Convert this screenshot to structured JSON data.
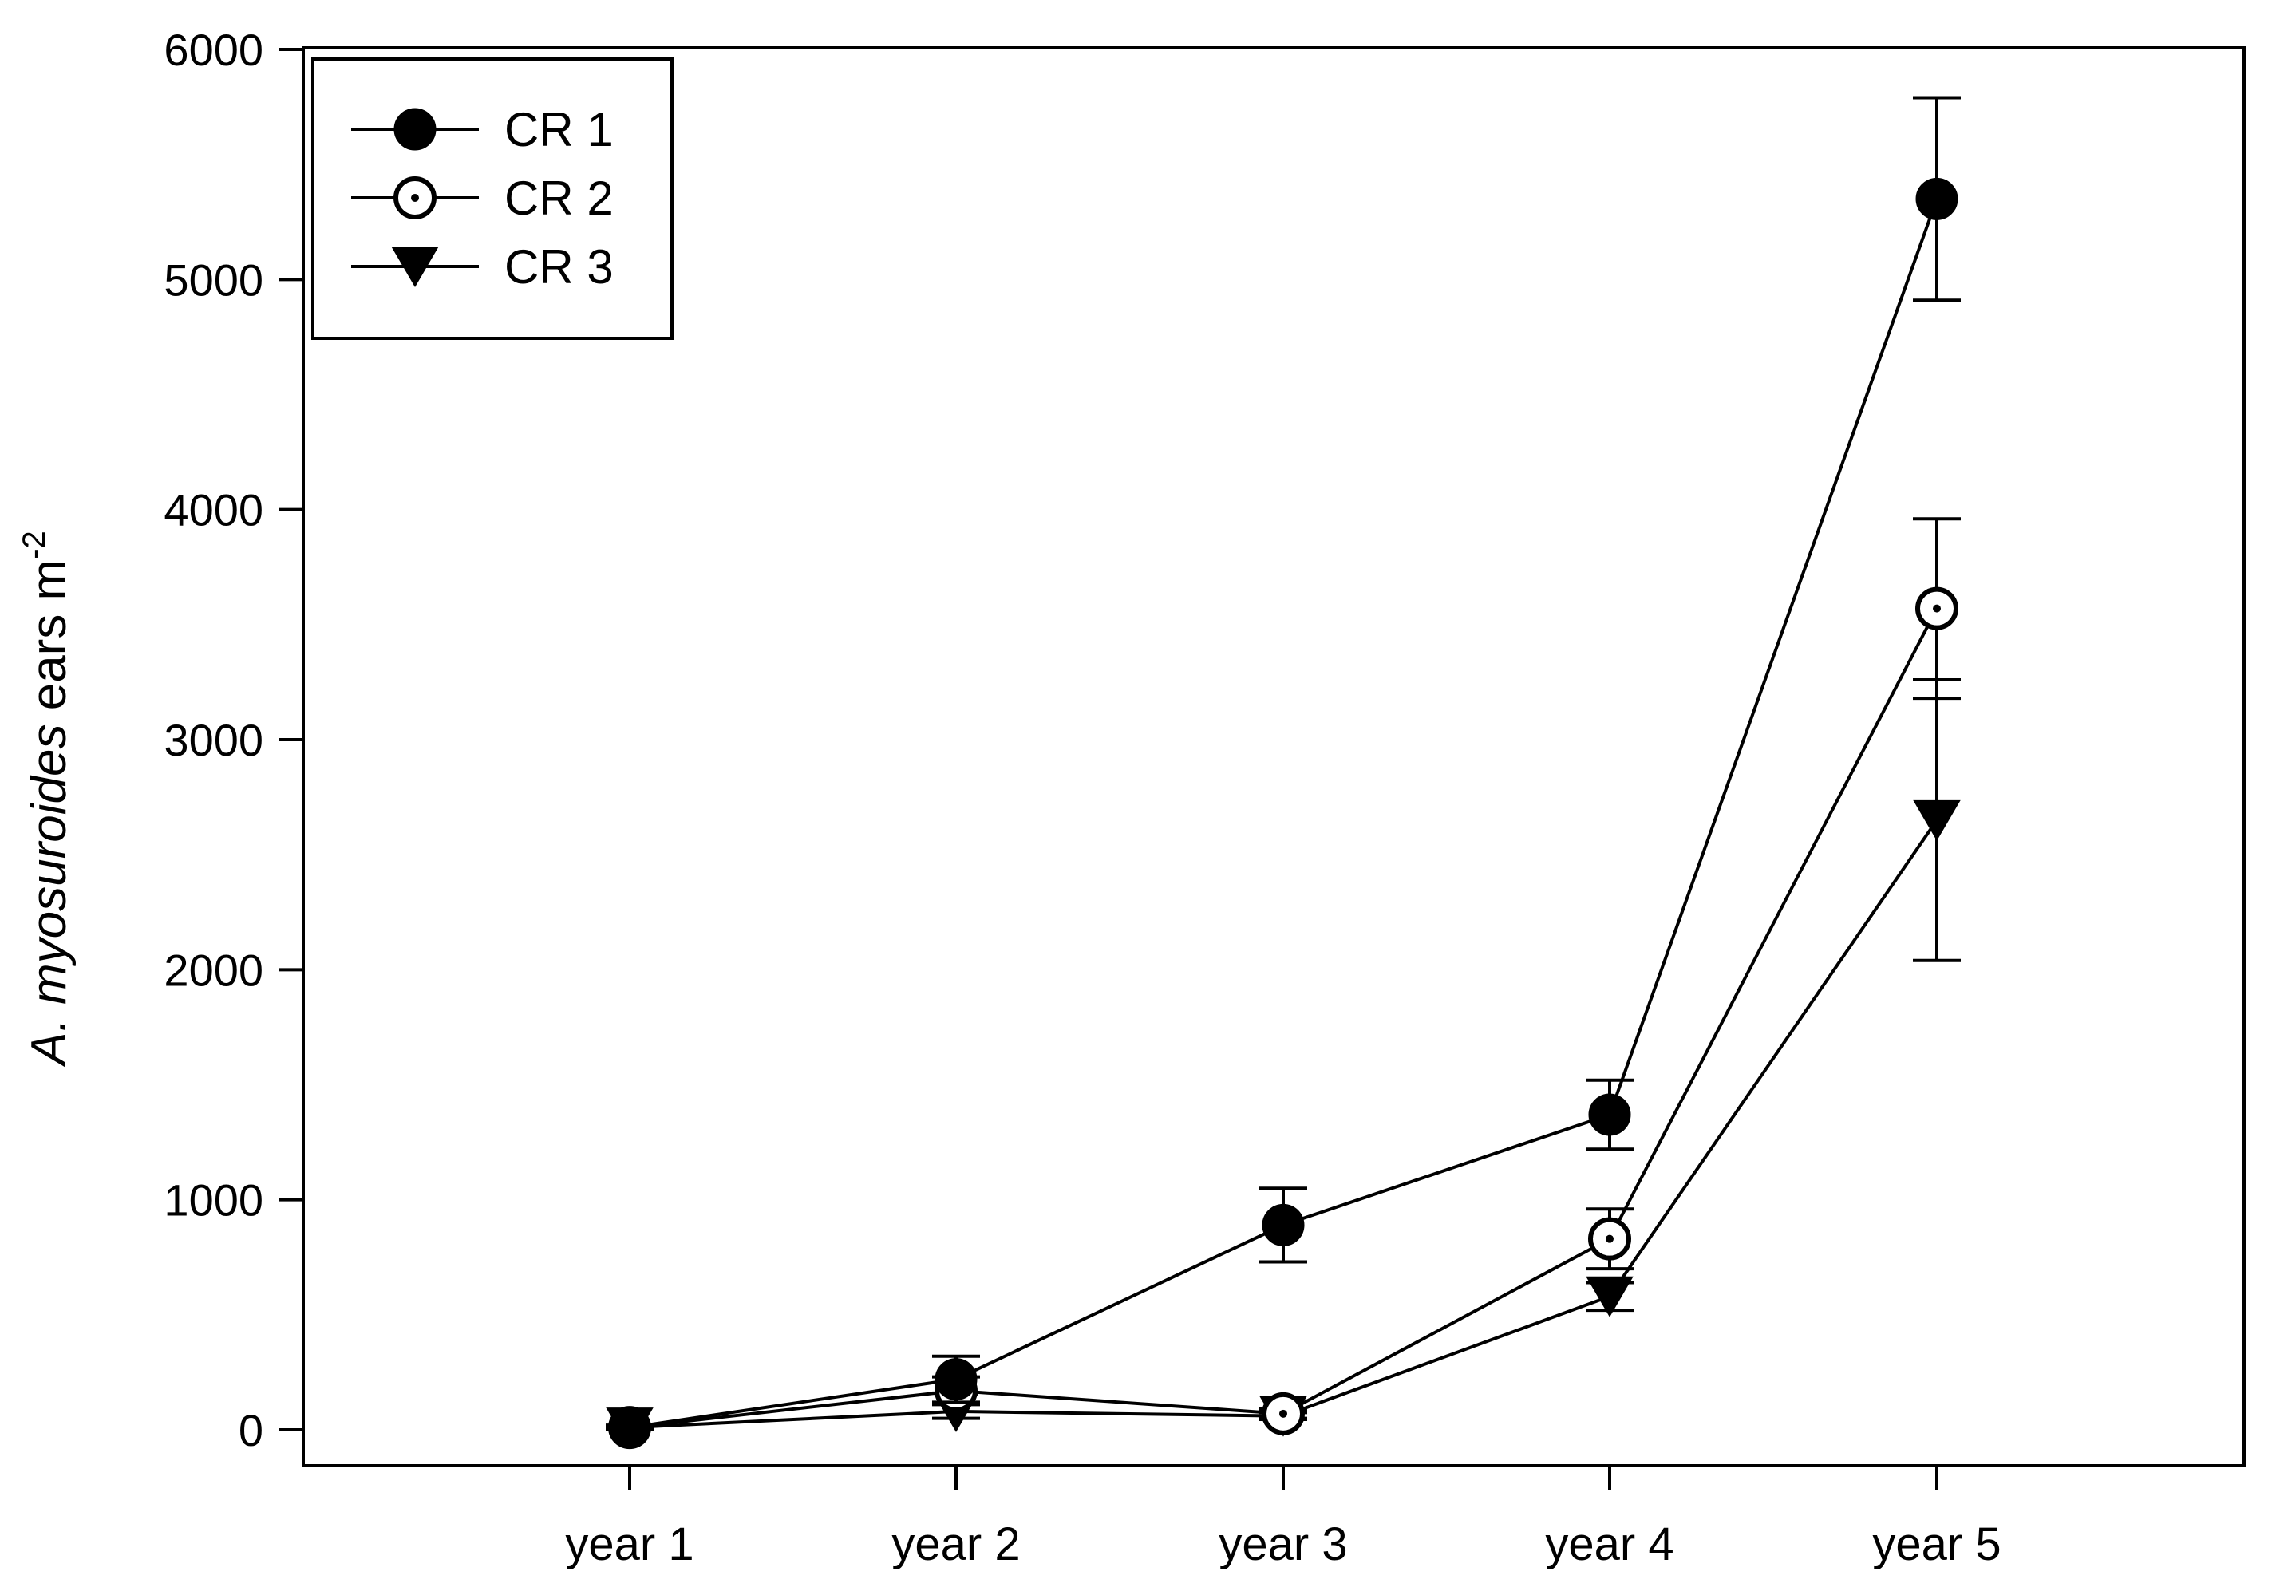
{
  "chart_data": {
    "type": "line",
    "title": "",
    "xlabel": "",
    "ylabel": {
      "italic": "A. myosuroides",
      "rest": " ears m",
      "superscript": "-2"
    },
    "categories": [
      "year 1",
      "year 2",
      "year 3",
      "year 4",
      "year 5"
    ],
    "ylim": [
      0,
      6000
    ],
    "yticks": [
      0,
      1000,
      2000,
      3000,
      4000,
      5000,
      6000
    ],
    "grid": false,
    "legend": {
      "position": "top-left"
    },
    "series": [
      {
        "name": "CR 1",
        "marker": "filled-circle",
        "values": [
          10,
          220,
          890,
          1370,
          5350
        ],
        "errors": [
          10,
          100,
          160,
          150,
          440
        ]
      },
      {
        "name": "CR 2",
        "marker": "dotted-circle",
        "values": [
          10,
          170,
          70,
          830,
          3570
        ],
        "errors": [
          10,
          60,
          20,
          130,
          390
        ]
      },
      {
        "name": "CR 3",
        "marker": "down-triangle",
        "values": [
          10,
          80,
          60,
          580,
          2650
        ],
        "errors": [
          5,
          30,
          15,
          60,
          610
        ]
      }
    ]
  }
}
